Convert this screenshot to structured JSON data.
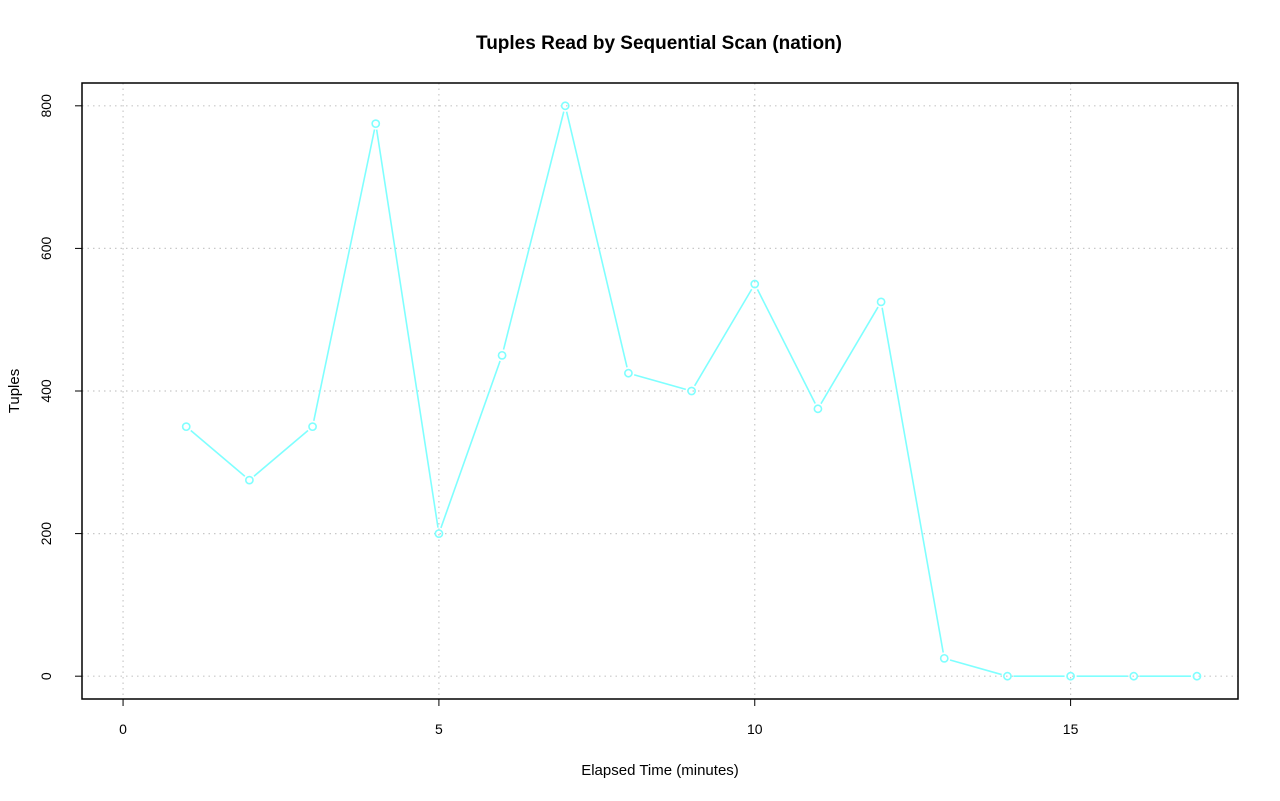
{
  "chart_data": {
    "type": "line",
    "title": "Tuples Read by Sequential Scan (nation)",
    "xlabel": "Elapsed Time (minutes)",
    "ylabel": "Tuples",
    "xlim": [
      -0.65,
      17.65
    ],
    "ylim": [
      -32,
      832
    ],
    "x_ticks": [
      0,
      5,
      10,
      15
    ],
    "y_ticks": [
      0,
      200,
      400,
      600,
      800
    ],
    "x_tick_labels": [
      "0",
      "5",
      "10",
      "15"
    ],
    "y_tick_labels": [
      "0",
      "200",
      "400",
      "600",
      "800"
    ],
    "grid": true,
    "line_color": "#7fffff",
    "series": [
      {
        "x": [
          1,
          2,
          3,
          4,
          5,
          6,
          7,
          8,
          9,
          10,
          11,
          12,
          13,
          14,
          15,
          16,
          17
        ],
        "values": [
          350,
          275,
          350,
          775,
          200,
          450,
          800,
          425,
          400,
          550,
          375,
          525,
          25,
          0,
          0,
          0,
          0
        ]
      }
    ]
  }
}
